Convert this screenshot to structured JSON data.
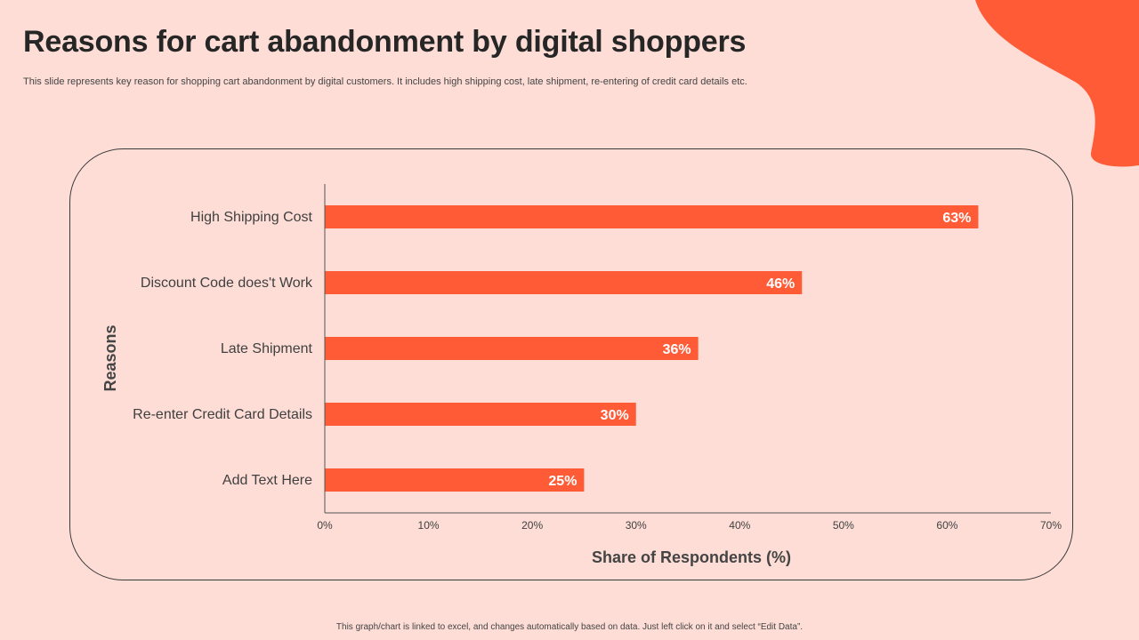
{
  "slide": {
    "title": "Reasons for cart abandonment by digital shoppers",
    "subtitle": "This slide represents  key reason for shopping cart abandonment by digital customers. It includes high shipping cost, late shipment, re-entering of credit card details etc.",
    "footnote": "This graph/chart is linked to excel, and changes automatically based on data. Just left click on it and select “Edit Data”."
  },
  "colors": {
    "background": "#FDDDD6",
    "accent": "#FF5B37",
    "bar": "#FF5B37"
  },
  "chart_data": {
    "type": "bar",
    "orientation": "horizontal",
    "categories": [
      "High Shipping Cost",
      "Discount Code does't Work",
      "Late Shipment",
      "Re-enter Credit Card Details",
      "Add Text Here"
    ],
    "values": [
      63,
      46,
      36,
      30,
      25
    ],
    "data_labels": [
      "63%",
      "46%",
      "36%",
      "30%",
      "25%"
    ],
    "xlabel": "Share of  Respondents (%)",
    "ylabel": "Reasons",
    "xlim": [
      0,
      70
    ],
    "xticks": [
      0,
      10,
      20,
      30,
      40,
      50,
      60,
      70
    ],
    "xtick_labels": [
      "0%",
      "10%",
      "20%",
      "30%",
      "40%",
      "50%",
      "60%",
      "70%"
    ],
    "grid": false,
    "legend": "none"
  }
}
